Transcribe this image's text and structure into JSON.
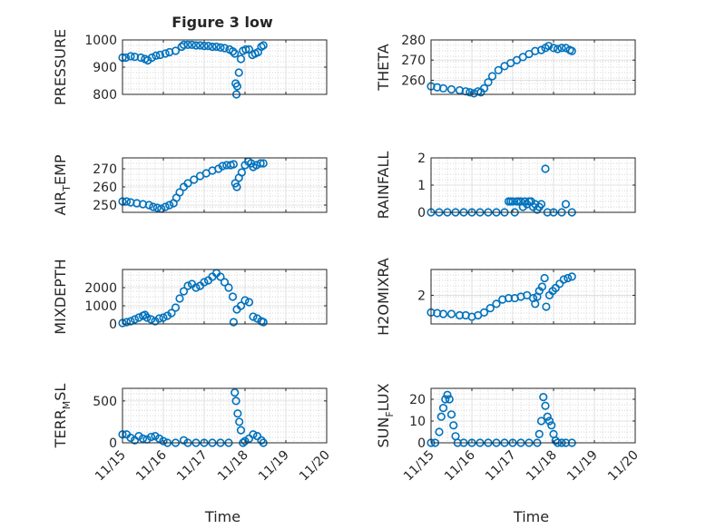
{
  "figure": {
    "title": "Figure 3 low",
    "xlabel": "Time"
  },
  "style": {
    "marker_color": "#0072BD",
    "axis_color": "#262626",
    "grid_color": "#c8c8c8"
  },
  "chart_data": [
    {
      "type": "scatter",
      "id": "pressure",
      "ylabel_parts": [
        "PRESSURE"
      ],
      "xlim": [
        "11/15",
        "11/20"
      ],
      "ylim": [
        800,
        1000
      ],
      "yticks": [
        800,
        900,
        1000
      ],
      "ytick_labels": [
        "800",
        "900",
        "1000"
      ],
      "xticks": [
        "11/15",
        "11/16",
        "11/17",
        "11/18",
        "11/19",
        "11/20"
      ],
      "show_xtick_labels": false,
      "grid": "dotted",
      "x_domain_days": [
        0,
        5
      ],
      "points": [
        [
          0,
          935
        ],
        [
          0.08,
          935
        ],
        [
          0.2,
          940
        ],
        [
          0.3,
          938
        ],
        [
          0.45,
          935
        ],
        [
          0.55,
          930
        ],
        [
          0.62,
          925
        ],
        [
          0.72,
          935
        ],
        [
          0.82,
          942
        ],
        [
          0.92,
          945
        ],
        [
          1.05,
          950
        ],
        [
          1.15,
          955
        ],
        [
          1.3,
          960
        ],
        [
          1.45,
          975
        ],
        [
          1.5,
          982
        ],
        [
          1.6,
          982
        ],
        [
          1.7,
          982
        ],
        [
          1.8,
          980
        ],
        [
          1.9,
          980
        ],
        [
          2.0,
          978
        ],
        [
          2.1,
          978
        ],
        [
          2.2,
          975
        ],
        [
          2.3,
          975
        ],
        [
          2.4,
          972
        ],
        [
          2.5,
          970
        ],
        [
          2.62,
          965
        ],
        [
          2.7,
          958
        ],
        [
          2.75,
          950
        ],
        [
          2.77,
          840
        ],
        [
          2.79,
          800
        ],
        [
          2.81,
          830
        ],
        [
          2.85,
          880
        ],
        [
          2.9,
          930
        ],
        [
          2.95,
          960
        ],
        [
          3.02,
          965
        ],
        [
          3.1,
          965
        ],
        [
          3.18,
          945
        ],
        [
          3.25,
          950
        ],
        [
          3.32,
          955
        ],
        [
          3.4,
          975
        ],
        [
          3.45,
          980
        ]
      ]
    },
    {
      "type": "scatter",
      "id": "theta",
      "ylabel_parts": [
        "THETA"
      ],
      "xlim": [
        "11/15",
        "11/20"
      ],
      "ylim": [
        253,
        280
      ],
      "yticks": [
        260,
        270,
        280
      ],
      "ytick_labels": [
        "260",
        "270",
        "280"
      ],
      "xticks": [
        "11/15",
        "11/16",
        "11/17",
        "11/18",
        "11/19",
        "11/20"
      ],
      "show_xtick_labels": false,
      "grid": "dotted",
      "x_domain_days": [
        0,
        5
      ],
      "points": [
        [
          0,
          257
        ],
        [
          0.15,
          256.5
        ],
        [
          0.3,
          256
        ],
        [
          0.5,
          255.5
        ],
        [
          0.7,
          255
        ],
        [
          0.85,
          254.5
        ],
        [
          0.95,
          254
        ],
        [
          1.05,
          253.5
        ],
        [
          1.15,
          254.5
        ],
        [
          1.22,
          254
        ],
        [
          1.3,
          256
        ],
        [
          1.4,
          259
        ],
        [
          1.5,
          262
        ],
        [
          1.65,
          265
        ],
        [
          1.8,
          267
        ],
        [
          1.95,
          268.5
        ],
        [
          2.1,
          270
        ],
        [
          2.25,
          271.5
        ],
        [
          2.4,
          273
        ],
        [
          2.55,
          274.5
        ],
        [
          2.7,
          275
        ],
        [
          2.8,
          276
        ],
        [
          2.88,
          277
        ],
        [
          3.0,
          276
        ],
        [
          3.1,
          275.5
        ],
        [
          3.2,
          276
        ],
        [
          3.3,
          276
        ],
        [
          3.4,
          275
        ],
        [
          3.45,
          274.5
        ]
      ]
    },
    {
      "type": "scatter",
      "id": "airtemp",
      "ylabel_parts": [
        "AIR",
        "T",
        "EMP"
      ],
      "xlim": [
        "11/15",
        "11/20"
      ],
      "ylim": [
        246,
        276
      ],
      "yticks": [
        250,
        260,
        270
      ],
      "ytick_labels": [
        "250",
        "260",
        "270"
      ],
      "xticks": [
        "11/15",
        "11/16",
        "11/17",
        "11/18",
        "11/19",
        "11/20"
      ],
      "show_xtick_labels": false,
      "grid": "dotted",
      "x_domain_days": [
        0,
        5
      ],
      "points": [
        [
          0,
          252
        ],
        [
          0.1,
          252
        ],
        [
          0.2,
          251.5
        ],
        [
          0.35,
          251
        ],
        [
          0.5,
          250.5
        ],
        [
          0.65,
          250
        ],
        [
          0.75,
          249
        ],
        [
          0.85,
          248.5
        ],
        [
          0.95,
          248
        ],
        [
          1.05,
          249
        ],
        [
          1.15,
          250
        ],
        [
          1.25,
          251
        ],
        [
          1.32,
          254
        ],
        [
          1.4,
          257
        ],
        [
          1.5,
          260
        ],
        [
          1.6,
          262
        ],
        [
          1.75,
          264
        ],
        [
          1.9,
          266
        ],
        [
          2.05,
          267.5
        ],
        [
          2.2,
          269
        ],
        [
          2.35,
          270
        ],
        [
          2.45,
          271.5
        ],
        [
          2.55,
          272
        ],
        [
          2.65,
          272
        ],
        [
          2.72,
          272.5
        ],
        [
          2.76,
          262
        ],
        [
          2.8,
          260
        ],
        [
          2.85,
          265
        ],
        [
          2.92,
          268
        ],
        [
          3.0,
          272
        ],
        [
          3.08,
          274
        ],
        [
          3.15,
          273
        ],
        [
          3.2,
          271
        ],
        [
          3.28,
          272
        ],
        [
          3.38,
          273
        ],
        [
          3.45,
          273
        ]
      ]
    },
    {
      "type": "scatter",
      "id": "rainfall",
      "ylabel_parts": [
        "RAINFALL"
      ],
      "xlim": [
        "11/15",
        "11/20"
      ],
      "ylim": [
        0,
        2
      ],
      "yticks": [
        0,
        1,
        2
      ],
      "ytick_labels": [
        "0",
        "1",
        "2"
      ],
      "xticks": [
        "11/15",
        "11/16",
        "11/17",
        "11/18",
        "11/19",
        "11/20"
      ],
      "show_xtick_labels": false,
      "grid": "dotted",
      "x_domain_days": [
        0,
        5
      ],
      "points": [
        [
          0,
          0
        ],
        [
          0.2,
          0
        ],
        [
          0.4,
          0
        ],
        [
          0.6,
          0
        ],
        [
          0.8,
          0
        ],
        [
          1.0,
          0
        ],
        [
          1.2,
          0
        ],
        [
          1.4,
          0
        ],
        [
          1.6,
          0
        ],
        [
          1.8,
          0
        ],
        [
          1.9,
          0.4
        ],
        [
          1.95,
          0.4
        ],
        [
          2.0,
          0.4
        ],
        [
          2.05,
          0
        ],
        [
          2.1,
          0.4
        ],
        [
          2.15,
          0.4
        ],
        [
          2.2,
          0.4
        ],
        [
          2.25,
          0.2
        ],
        [
          2.3,
          0.4
        ],
        [
          2.35,
          0.3
        ],
        [
          2.4,
          0.4
        ],
        [
          2.45,
          0.4
        ],
        [
          2.5,
          0.2
        ],
        [
          2.55,
          0.3
        ],
        [
          2.6,
          0.1
        ],
        [
          2.65,
          0.2
        ],
        [
          2.7,
          0.3
        ],
        [
          2.8,
          1.6
        ],
        [
          2.85,
          0
        ],
        [
          3.0,
          0
        ],
        [
          3.2,
          0
        ],
        [
          3.3,
          0.3
        ],
        [
          3.45,
          0
        ]
      ]
    },
    {
      "type": "scatter",
      "id": "mixdepth",
      "ylabel_parts": [
        "MIXDEPTH"
      ],
      "xlim": [
        "11/15",
        "11/20"
      ],
      "ylim": [
        0,
        3000
      ],
      "yticks": [
        0,
        1000,
        2000
      ],
      "ytick_labels": [
        "0",
        "1000",
        "2000"
      ],
      "xticks": [
        "11/15",
        "11/16",
        "11/17",
        "11/18",
        "11/19",
        "11/20"
      ],
      "show_xtick_labels": false,
      "grid": "dotted",
      "x_domain_days": [
        0,
        5
      ],
      "points": [
        [
          0,
          50
        ],
        [
          0.1,
          100
        ],
        [
          0.2,
          150
        ],
        [
          0.3,
          250
        ],
        [
          0.4,
          350
        ],
        [
          0.5,
          450
        ],
        [
          0.55,
          500
        ],
        [
          0.6,
          350
        ],
        [
          0.7,
          250
        ],
        [
          0.8,
          150
        ],
        [
          0.9,
          300
        ],
        [
          1.0,
          350
        ],
        [
          1.1,
          450
        ],
        [
          1.2,
          600
        ],
        [
          1.3,
          900
        ],
        [
          1.4,
          1400
        ],
        [
          1.5,
          1800
        ],
        [
          1.6,
          2100
        ],
        [
          1.7,
          2200
        ],
        [
          1.8,
          2000
        ],
        [
          1.9,
          2100
        ],
        [
          2.0,
          2300
        ],
        [
          2.1,
          2400
        ],
        [
          2.2,
          2600
        ],
        [
          2.3,
          2800
        ],
        [
          2.4,
          2600
        ],
        [
          2.5,
          2300
        ],
        [
          2.6,
          2000
        ],
        [
          2.7,
          1500
        ],
        [
          2.72,
          100
        ],
        [
          2.8,
          800
        ],
        [
          2.9,
          1000
        ],
        [
          3.0,
          1300
        ],
        [
          3.1,
          1200
        ],
        [
          3.2,
          400
        ],
        [
          3.3,
          300
        ],
        [
          3.4,
          150
        ],
        [
          3.45,
          100
        ]
      ]
    },
    {
      "type": "scatter",
      "id": "h2omixra",
      "ylabel_parts": [
        "H2OMIXRA"
      ],
      "xlim": [
        "11/15",
        "11/20"
      ],
      "ylim": [
        0,
        3.8
      ],
      "yticks": [
        2
      ],
      "ytick_labels": [
        "2"
      ],
      "xticks": [
        "11/15",
        "11/16",
        "11/17",
        "11/18",
        "11/19",
        "11/20"
      ],
      "show_xtick_labels": false,
      "grid": "dotted",
      "x_domain_days": [
        0,
        5
      ],
      "points": [
        [
          0,
          0.8
        ],
        [
          0.15,
          0.75
        ],
        [
          0.3,
          0.7
        ],
        [
          0.5,
          0.7
        ],
        [
          0.7,
          0.6
        ],
        [
          0.85,
          0.6
        ],
        [
          1.0,
          0.5
        ],
        [
          1.15,
          0.6
        ],
        [
          1.3,
          0.8
        ],
        [
          1.45,
          1.1
        ],
        [
          1.6,
          1.4
        ],
        [
          1.75,
          1.7
        ],
        [
          1.9,
          1.8
        ],
        [
          2.05,
          1.8
        ],
        [
          2.2,
          1.9
        ],
        [
          2.35,
          2.0
        ],
        [
          2.5,
          1.8
        ],
        [
          2.55,
          1.4
        ],
        [
          2.6,
          1.9
        ],
        [
          2.65,
          2.3
        ],
        [
          2.72,
          2.6
        ],
        [
          2.78,
          3.2
        ],
        [
          2.82,
          1.2
        ],
        [
          2.9,
          2.0
        ],
        [
          2.98,
          2.3
        ],
        [
          3.05,
          2.5
        ],
        [
          3.15,
          2.8
        ],
        [
          3.25,
          3.1
        ],
        [
          3.35,
          3.2
        ],
        [
          3.45,
          3.3
        ]
      ]
    },
    {
      "type": "scatter",
      "id": "terrmsl",
      "ylabel_parts": [
        "TERR",
        "M",
        "SL"
      ],
      "xlim": [
        "11/15",
        "11/20"
      ],
      "ylim": [
        0,
        650
      ],
      "yticks": [
        0,
        500
      ],
      "ytick_labels": [
        "0",
        "500"
      ],
      "xticks": [
        "11/15",
        "11/16",
        "11/17",
        "11/18",
        "11/19",
        "11/20"
      ],
      "show_xtick_labels": true,
      "grid": "dotted",
      "x_domain_days": [
        0,
        5
      ],
      "points": [
        [
          0,
          100
        ],
        [
          0.1,
          100
        ],
        [
          0.2,
          60
        ],
        [
          0.3,
          30
        ],
        [
          0.4,
          80
        ],
        [
          0.5,
          50
        ],
        [
          0.6,
          40
        ],
        [
          0.7,
          70
        ],
        [
          0.8,
          80
        ],
        [
          0.9,
          50
        ],
        [
          1.0,
          20
        ],
        [
          1.1,
          0
        ],
        [
          1.3,
          0
        ],
        [
          1.5,
          30
        ],
        [
          1.6,
          0
        ],
        [
          1.8,
          0
        ],
        [
          2.0,
          0
        ],
        [
          2.2,
          0
        ],
        [
          2.4,
          0
        ],
        [
          2.6,
          0
        ],
        [
          2.75,
          600
        ],
        [
          2.78,
          500
        ],
        [
          2.82,
          350
        ],
        [
          2.86,
          250
        ],
        [
          2.9,
          150
        ],
        [
          2.95,
          0
        ],
        [
          3.0,
          20
        ],
        [
          3.1,
          50
        ],
        [
          3.2,
          100
        ],
        [
          3.3,
          80
        ],
        [
          3.4,
          30
        ],
        [
          3.45,
          0
        ]
      ]
    },
    {
      "type": "scatter",
      "id": "sunflux",
      "ylabel_parts": [
        "SUN",
        "F",
        "LUX"
      ],
      "xlim": [
        "11/15",
        "11/20"
      ],
      "ylim": [
        0,
        25
      ],
      "yticks": [
        0,
        10,
        20
      ],
      "ytick_labels": [
        "0",
        "10",
        "20"
      ],
      "xticks": [
        "11/15",
        "11/16",
        "11/17",
        "11/18",
        "11/19",
        "11/20"
      ],
      "show_xtick_labels": true,
      "grid": "dotted",
      "x_domain_days": [
        0,
        5
      ],
      "points": [
        [
          0,
          0
        ],
        [
          0.1,
          0
        ],
        [
          0.2,
          5
        ],
        [
          0.25,
          12
        ],
        [
          0.3,
          16
        ],
        [
          0.35,
          20
        ],
        [
          0.4,
          22
        ],
        [
          0.45,
          20
        ],
        [
          0.5,
          13
        ],
        [
          0.55,
          8
        ],
        [
          0.6,
          3
        ],
        [
          0.65,
          0
        ],
        [
          0.8,
          0
        ],
        [
          1.0,
          0
        ],
        [
          1.2,
          0
        ],
        [
          1.4,
          0
        ],
        [
          1.6,
          0
        ],
        [
          1.8,
          0
        ],
        [
          2.0,
          0
        ],
        [
          2.2,
          0
        ],
        [
          2.4,
          0
        ],
        [
          2.6,
          0
        ],
        [
          2.65,
          4
        ],
        [
          2.7,
          10
        ],
        [
          2.75,
          21
        ],
        [
          2.8,
          17
        ],
        [
          2.85,
          12
        ],
        [
          2.9,
          10
        ],
        [
          2.95,
          8
        ],
        [
          3.0,
          4
        ],
        [
          3.05,
          1
        ],
        [
          3.1,
          0
        ],
        [
          3.2,
          0
        ],
        [
          3.3,
          0
        ],
        [
          3.45,
          0
        ]
      ]
    }
  ]
}
